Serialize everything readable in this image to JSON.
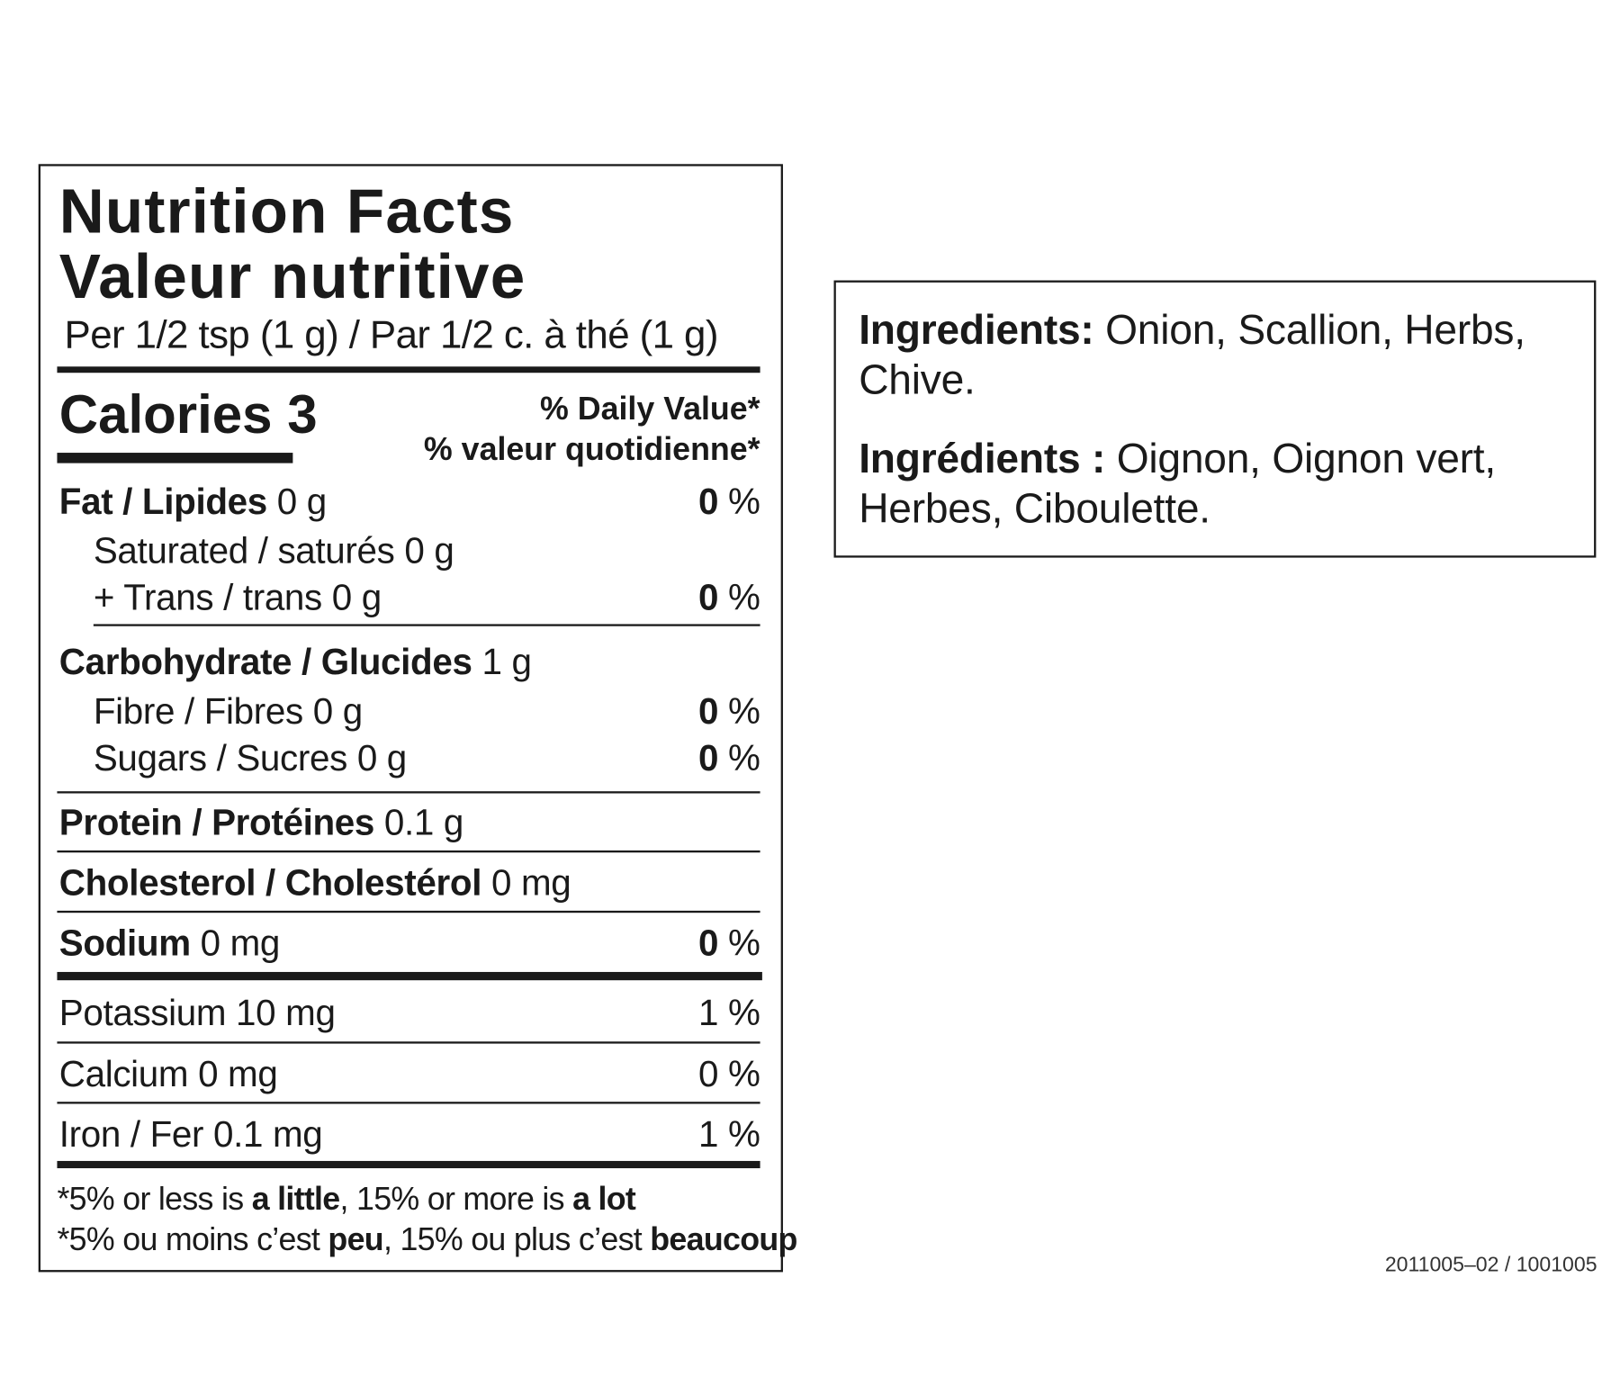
{
  "nutrition": {
    "title_en": "Nutrition Facts",
    "title_fr": "Valeur nutritive",
    "serving": "Per 1/2 tsp (1 g) / Par 1/2 c. à thé (1 g)",
    "calories_label": "Calories 3",
    "dv_en": "% Daily Value*",
    "dv_fr": "% valeur quotidienne*",
    "rows": [
      {
        "label": "Fat / Lipides",
        "amount": "0 g",
        "pct": "0",
        "unit": " %"
      },
      {
        "label": "Saturated / saturés 0 g"
      },
      {
        "label": "+ Trans / trans 0 g",
        "pct": "0",
        "unit": " %"
      },
      {
        "label": "Carbohydrate / Glucides",
        "amount": "1 g"
      },
      {
        "label": "Fibre / Fibres 0 g",
        "pct": "0",
        "unit": " %"
      },
      {
        "label": "Sugars / Sucres 0 g",
        "pct": "0",
        "unit": " %"
      },
      {
        "label": "Protein / Protéines",
        "amount": "0.1 g"
      },
      {
        "label": "Cholesterol / Cholestérol",
        "amount": "0 mg"
      },
      {
        "label": "Sodium",
        "amount": "0 mg",
        "pct": "0",
        "unit": " %"
      },
      {
        "label": "Potassium 10 mg",
        "pct": "1 %"
      },
      {
        "label": "Calcium 0 mg",
        "pct": "0 %"
      },
      {
        "label": "Iron / Fer 0.1 mg",
        "pct": "1 %"
      }
    ],
    "footnote_en": {
      "a": "*5% or less is ",
      "b": "a little",
      "c": ", 15% or more is ",
      "d": "a lot"
    },
    "footnote_fr": {
      "a": "*5% ou moins c’est ",
      "b": "peu",
      "c": ", 15% ou plus c’est ",
      "d": "beaucoup"
    }
  },
  "ingredients": {
    "en_label": "Ingredients:",
    "en_text": " Onion, Scallion, Herbs, Chive.",
    "fr_label": "Ingrédients :",
    "fr_text": " Oignon, Oignon vert, Herbes, Ciboulette."
  },
  "code": "2011005–02 / 1001005"
}
